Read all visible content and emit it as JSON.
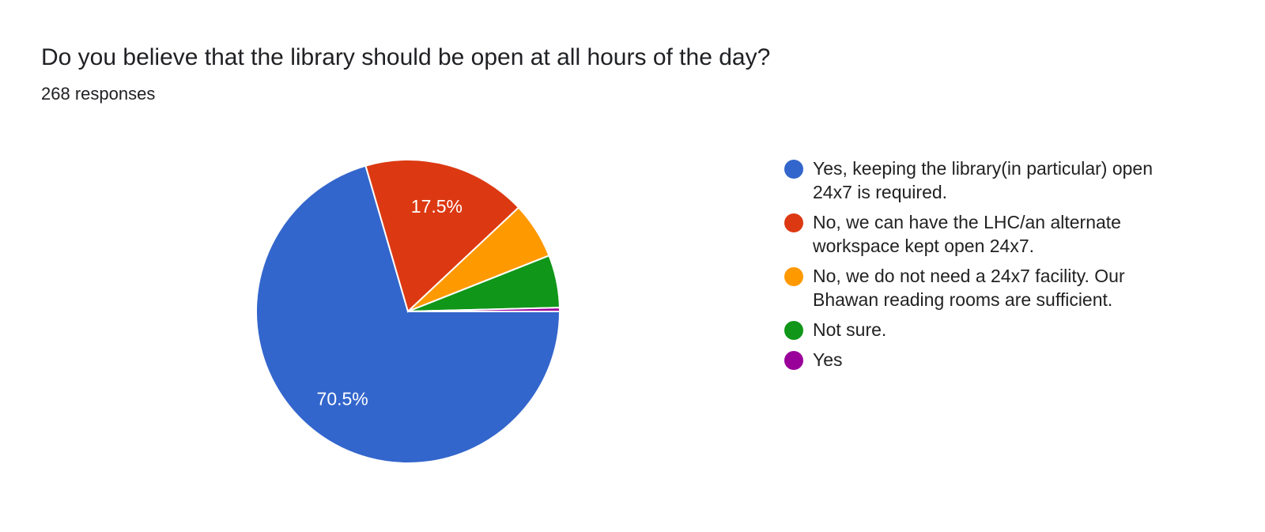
{
  "title": "Do you believe that the library should be open at all hours of the day?",
  "subtitle": "268 responses",
  "chart_data": {
    "type": "pie",
    "title": "Do you believe that the library should be open at all hours of the day?",
    "legend_position": "right",
    "slices": [
      {
        "label": "Yes, keeping the library(in particular) open 24x7 is required.",
        "percent": 70.5,
        "data_label": "70.5%",
        "color": "#3366cc"
      },
      {
        "label": "No, we can have the LHC/an alternate workspace kept open 24x7.",
        "percent": 17.5,
        "data_label": "17.5%",
        "color": "#dc3912"
      },
      {
        "label": "No, we do not need a 24x7 facility. Our Bhawan reading rooms are sufficient.",
        "percent": 6.0,
        "data_label": "",
        "color": "#ff9900"
      },
      {
        "label": "Not sure.",
        "percent": 5.6,
        "data_label": "",
        "color": "#109618"
      },
      {
        "label": "Yes",
        "percent": 0.4,
        "data_label": "",
        "color": "#990099"
      }
    ]
  }
}
